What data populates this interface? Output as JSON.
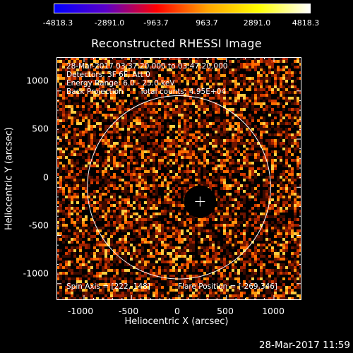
{
  "colorbar": {
    "tick_labels": [
      "-4818.3",
      "-2891.0",
      "-963.7",
      "963.7",
      "2891.0",
      "4818.3"
    ],
    "range": [
      -4818.3,
      4818.3
    ],
    "colormap": [
      "#0000ff",
      "#5a00c8",
      "#ff0000",
      "#ffa500",
      "#ffff00",
      "#ffffff"
    ]
  },
  "title": "Reconstructed RHESSI Image",
  "info": {
    "line1": "28-Mar-2017 03:37:20.000 to 03:47:20.000",
    "line2": "Detectors: 3F 6F, Att 0",
    "line3": "Energy Range: 6.0 - 25.0 keV",
    "line4_left": "Back Projection",
    "line4_right": "Total counts: 4.95E+04"
  },
  "footer_left": "Spin Axis = [222,-148]",
  "footer_right": "Flare Position = [-269,346]",
  "axes": {
    "xlabel": "Heliocentric X (arcsec)",
    "ylabel": "Heliocentric Y (arcsec)",
    "xticks": [
      "-1000",
      "-500",
      "0",
      "500",
      "1000"
    ],
    "yticks": [
      "1000",
      "500",
      "0",
      "-500",
      "-1000"
    ],
    "xlim": [
      -1290,
      1290
    ],
    "ylim": [
      -1170,
      1350
    ]
  },
  "solar_limb_radius_arcsec": 965,
  "spin_axis_arcsec": [
    222,
    -148
  ],
  "timestamp": "28-Mar-2017 11:59"
}
